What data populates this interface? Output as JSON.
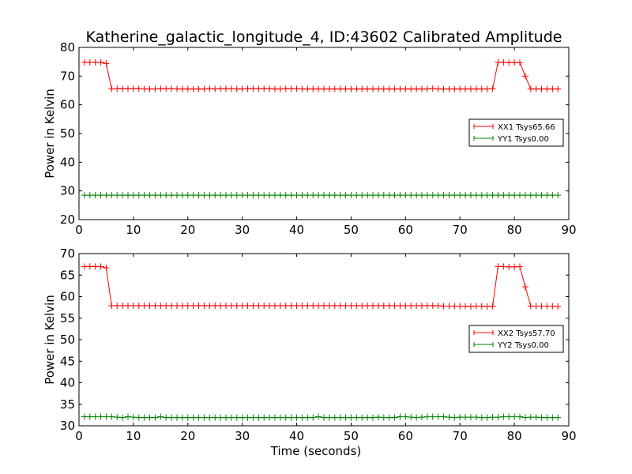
{
  "title": "Katherine_galactic_longitude_4, ID:43602 Calibrated Amplitude",
  "chart_data": [
    {
      "type": "line",
      "ylabel": "Power in Kelvin",
      "xlabel": "",
      "xlim": [
        0,
        90
      ],
      "ylim": [
        20,
        80
      ],
      "xticks": [
        "0",
        "10",
        "20",
        "30",
        "40",
        "50",
        "60",
        "70",
        "80",
        "90"
      ],
      "yticks": [
        "20",
        "30",
        "40",
        "50",
        "60",
        "70",
        "80"
      ],
      "grid": false,
      "legend_position": "right",
      "series": [
        {
          "name": "XX1 Tsys65.66",
          "color": "#ff0000",
          "x": [
            1,
            2,
            3,
            4,
            5,
            6,
            7,
            8,
            9,
            10,
            11,
            12,
            13,
            14,
            15,
            16,
            17,
            18,
            19,
            20,
            21,
            22,
            23,
            24,
            25,
            26,
            27,
            28,
            29,
            30,
            31,
            32,
            33,
            34,
            35,
            36,
            37,
            38,
            39,
            40,
            41,
            42,
            43,
            44,
            45,
            46,
            47,
            48,
            49,
            50,
            51,
            52,
            53,
            54,
            55,
            56,
            57,
            58,
            59,
            60,
            61,
            62,
            63,
            64,
            65,
            66,
            67,
            68,
            69,
            70,
            71,
            72,
            73,
            74,
            75,
            76,
            77,
            78,
            79,
            80,
            81,
            82,
            83,
            84,
            85,
            86,
            87,
            88
          ],
          "y": [
            74.8,
            74.8,
            74.8,
            74.8,
            74.4,
            65.5,
            65.6,
            65.6,
            65.6,
            65.6,
            65.6,
            65.5,
            65.5,
            65.5,
            65.6,
            65.6,
            65.6,
            65.5,
            65.5,
            65.5,
            65.5,
            65.5,
            65.5,
            65.6,
            65.5,
            65.6,
            65.6,
            65.6,
            65.5,
            65.5,
            65.6,
            65.6,
            65.6,
            65.6,
            65.6,
            65.5,
            65.5,
            65.6,
            65.6,
            65.6,
            65.5,
            65.5,
            65.5,
            65.5,
            65.5,
            65.5,
            65.5,
            65.5,
            65.5,
            65.5,
            65.5,
            65.5,
            65.5,
            65.5,
            65.5,
            65.5,
            65.5,
            65.5,
            65.5,
            65.5,
            65.5,
            65.5,
            65.5,
            65.5,
            65.7,
            65.5,
            65.5,
            65.5,
            65.5,
            65.5,
            65.5,
            65.5,
            65.5,
            65.5,
            65.5,
            65.6,
            74.8,
            74.8,
            74.7,
            74.7,
            74.7,
            70.0,
            65.5,
            65.5,
            65.5,
            65.5,
            65.5,
            65.5
          ]
        },
        {
          "name": "YY1 Tsys0.00",
          "color": "#008000",
          "x": [
            1,
            2,
            3,
            4,
            5,
            6,
            7,
            8,
            9,
            10,
            11,
            12,
            13,
            14,
            15,
            16,
            17,
            18,
            19,
            20,
            21,
            22,
            23,
            24,
            25,
            26,
            27,
            28,
            29,
            30,
            31,
            32,
            33,
            34,
            35,
            36,
            37,
            38,
            39,
            40,
            41,
            42,
            43,
            44,
            45,
            46,
            47,
            48,
            49,
            50,
            51,
            52,
            53,
            54,
            55,
            56,
            57,
            58,
            59,
            60,
            61,
            62,
            63,
            64,
            65,
            66,
            67,
            68,
            69,
            70,
            71,
            72,
            73,
            74,
            75,
            76,
            77,
            78,
            79,
            80,
            81,
            82,
            83,
            84,
            85,
            86,
            87,
            88
          ],
          "y": [
            28.5,
            28.5,
            28.5,
            28.5,
            28.5,
            28.5,
            28.5,
            28.5,
            28.5,
            28.5,
            28.5,
            28.5,
            28.5,
            28.5,
            28.5,
            28.5,
            28.5,
            28.5,
            28.5,
            28.5,
            28.5,
            28.5,
            28.5,
            28.5,
            28.5,
            28.5,
            28.5,
            28.5,
            28.5,
            28.5,
            28.5,
            28.5,
            28.5,
            28.5,
            28.5,
            28.5,
            28.5,
            28.5,
            28.5,
            28.5,
            28.5,
            28.5,
            28.5,
            28.5,
            28.5,
            28.5,
            28.5,
            28.5,
            28.5,
            28.5,
            28.5,
            28.5,
            28.5,
            28.5,
            28.5,
            28.5,
            28.5,
            28.5,
            28.5,
            28.5,
            28.5,
            28.5,
            28.5,
            28.5,
            28.5,
            28.5,
            28.5,
            28.5,
            28.5,
            28.5,
            28.5,
            28.5,
            28.5,
            28.5,
            28.5,
            28.5,
            28.5,
            28.5,
            28.5,
            28.5,
            28.5,
            28.5,
            28.5,
            28.5,
            28.5,
            28.5,
            28.5,
            28.5
          ]
        }
      ]
    },
    {
      "type": "line",
      "ylabel": "Power in Kelvin",
      "xlabel": "Time (seconds)",
      "xlim": [
        0,
        90
      ],
      "ylim": [
        30,
        70
      ],
      "xticks": [
        "0",
        "10",
        "20",
        "30",
        "40",
        "50",
        "60",
        "70",
        "80",
        "90"
      ],
      "yticks": [
        "30",
        "35",
        "40",
        "45",
        "50",
        "55",
        "60",
        "65",
        "70"
      ],
      "grid": false,
      "legend_position": "right",
      "series": [
        {
          "name": "XX2 Tsys57.70",
          "color": "#ff0000",
          "x": [
            1,
            2,
            3,
            4,
            5,
            6,
            7,
            8,
            9,
            10,
            11,
            12,
            13,
            14,
            15,
            16,
            17,
            18,
            19,
            20,
            21,
            22,
            23,
            24,
            25,
            26,
            27,
            28,
            29,
            30,
            31,
            32,
            33,
            34,
            35,
            36,
            37,
            38,
            39,
            40,
            41,
            42,
            43,
            44,
            45,
            46,
            47,
            48,
            49,
            50,
            51,
            52,
            53,
            54,
            55,
            56,
            57,
            58,
            59,
            60,
            61,
            62,
            63,
            64,
            65,
            66,
            67,
            68,
            69,
            70,
            71,
            72,
            73,
            74,
            75,
            76,
            77,
            78,
            79,
            80,
            81,
            82,
            83,
            84,
            85,
            86,
            87,
            88
          ],
          "y": [
            67.0,
            67.0,
            67.0,
            67.0,
            66.7,
            57.9,
            57.9,
            57.9,
            57.9,
            57.9,
            57.9,
            57.9,
            57.9,
            57.9,
            57.9,
            57.9,
            57.9,
            57.9,
            57.9,
            57.9,
            57.9,
            57.9,
            57.9,
            57.9,
            57.9,
            57.9,
            57.9,
            57.9,
            57.9,
            57.9,
            57.9,
            57.9,
            57.9,
            57.9,
            57.9,
            57.9,
            57.9,
            57.9,
            57.9,
            57.9,
            57.9,
            57.9,
            57.9,
            57.9,
            57.9,
            57.9,
            57.9,
            57.9,
            57.9,
            57.9,
            57.9,
            57.9,
            57.9,
            57.9,
            57.9,
            57.9,
            57.9,
            57.9,
            57.9,
            57.9,
            57.9,
            57.9,
            57.9,
            57.9,
            57.9,
            57.9,
            57.8,
            57.8,
            57.8,
            57.8,
            57.8,
            57.7,
            57.8,
            57.8,
            57.7,
            57.8,
            67.0,
            67.0,
            66.9,
            66.9,
            67.0,
            62.3,
            57.8,
            57.8,
            57.8,
            57.8,
            57.8,
            57.7
          ]
        },
        {
          "name": "YY2 Tsys0.00",
          "color": "#008000",
          "x": [
            1,
            2,
            3,
            4,
            5,
            6,
            7,
            8,
            9,
            10,
            11,
            12,
            13,
            14,
            15,
            16,
            17,
            18,
            19,
            20,
            21,
            22,
            23,
            24,
            25,
            26,
            27,
            28,
            29,
            30,
            31,
            32,
            33,
            34,
            35,
            36,
            37,
            38,
            39,
            40,
            41,
            42,
            43,
            44,
            45,
            46,
            47,
            48,
            49,
            50,
            51,
            52,
            53,
            54,
            55,
            56,
            57,
            58,
            59,
            60,
            61,
            62,
            63,
            64,
            65,
            66,
            67,
            68,
            69,
            70,
            71,
            72,
            73,
            74,
            75,
            76,
            77,
            78,
            79,
            80,
            81,
            82,
            83,
            84,
            85,
            86,
            87,
            88
          ],
          "y": [
            32.1,
            32.1,
            32.1,
            32.1,
            32.1,
            32.1,
            32.0,
            31.9,
            32.1,
            32.0,
            31.9,
            31.9,
            31.9,
            31.9,
            32.1,
            31.9,
            31.9,
            31.9,
            31.9,
            31.9,
            31.9,
            31.9,
            31.9,
            31.9,
            31.9,
            31.9,
            31.9,
            31.9,
            31.9,
            31.9,
            31.9,
            31.9,
            31.9,
            31.9,
            31.9,
            31.9,
            31.9,
            31.9,
            31.9,
            31.9,
            31.9,
            31.9,
            31.9,
            32.1,
            31.9,
            31.9,
            31.9,
            31.9,
            31.9,
            31.9,
            31.9,
            31.9,
            31.9,
            31.9,
            32.0,
            31.9,
            31.9,
            31.9,
            32.1,
            32.1,
            32.0,
            31.9,
            32.0,
            32.1,
            32.1,
            32.1,
            32.1,
            32.0,
            31.9,
            32.0,
            32.0,
            32.0,
            32.0,
            31.9,
            31.9,
            32.0,
            32.0,
            32.1,
            32.1,
            32.1,
            32.1,
            31.9,
            32.0,
            32.0,
            31.9,
            31.9,
            31.9,
            31.9
          ]
        }
      ]
    }
  ]
}
